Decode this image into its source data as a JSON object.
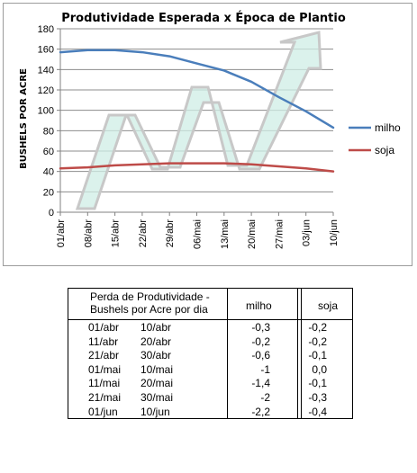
{
  "chart_data": {
    "type": "line",
    "title": "Produtividade Esperada x Época de Plantio",
    "ylabel": "BUSHELS POR ACRE",
    "xlabel": "",
    "ylim": [
      0,
      180
    ],
    "yticks": [
      "0",
      "20",
      "40",
      "60",
      "80",
      "100",
      "120",
      "140",
      "160",
      "180"
    ],
    "grid": true,
    "legend_position": "right",
    "categories": [
      "01/abr",
      "08/abr",
      "15/abr",
      "22/abr",
      "29/abr",
      "06/mai",
      "13/mai",
      "20/mai",
      "27/mai",
      "03/jun",
      "10/jun"
    ],
    "series": [
      {
        "name": "milho",
        "color": "#4a7ebb",
        "values": [
          157,
          159,
          159,
          157,
          153,
          146,
          139,
          128,
          113,
          99,
          83
        ]
      },
      {
        "name": "soja",
        "color": "#be4b48",
        "values": [
          43,
          44,
          46,
          47,
          48,
          48,
          48,
          47,
          45,
          43,
          40
        ]
      }
    ],
    "decoration": "light green zigzag upward arrow behind the plot"
  },
  "table": {
    "header": {
      "period_line1": "Perda de Produtividade -",
      "period_line2": "Bushels por Acre por dia",
      "milho": "milho",
      "soja": "soja"
    },
    "rows": [
      {
        "start": "01/abr",
        "end": "10/abr",
        "milho": "-0,3",
        "soja": "-0,2"
      },
      {
        "start": "11/abr",
        "end": "20/abr",
        "milho": "-0,2",
        "soja": "-0,2"
      },
      {
        "start": "21/abr",
        "end": "30/abr",
        "milho": "-0,6",
        "soja": "-0,1"
      },
      {
        "start": "01/mai",
        "end": "10/mai",
        "milho": "-1",
        "soja": "0,0"
      },
      {
        "start": "11/mai",
        "end": "20/mai",
        "milho": "-1,4",
        "soja": "-0,1"
      },
      {
        "start": "21/mai",
        "end": "30/mai",
        "milho": "-2",
        "soja": "-0,3"
      },
      {
        "start": "01/jun",
        "end": "10/jun",
        "milho": "-2,2",
        "soja": "-0,4"
      }
    ]
  }
}
